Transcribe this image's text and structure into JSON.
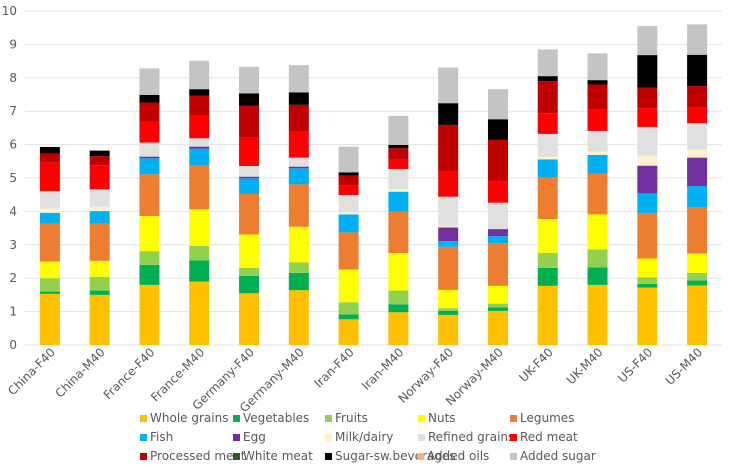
{
  "chart_data": {
    "type": "bar",
    "stacked": true,
    "title": "",
    "xlabel": "",
    "ylabel": "",
    "ylim": [
      0,
      10
    ],
    "yticks": [
      0,
      1,
      2,
      3,
      4,
      5,
      6,
      7,
      8,
      9,
      10
    ],
    "grid": true,
    "legend_position": "bottom",
    "categories": [
      "China-F40",
      "China-M40",
      "France-F40",
      "France-M40",
      "Germany-F40",
      "Germany-M40",
      "Iran-F40",
      "Iran-M40",
      "Norway-F40",
      "Norway-M40",
      "UK-F40",
      "UK-M40",
      "US-F40",
      "US-M40"
    ],
    "series": [
      {
        "name": "Whole grains",
        "color": "#FFC000",
        "values": [
          1.53,
          1.5,
          1.8,
          1.9,
          1.55,
          1.64,
          0.77,
          0.98,
          0.9,
          1.02,
          1.77,
          1.8,
          1.72,
          1.78
        ]
      },
      {
        "name": "Vegetables",
        "color": "#00B050",
        "values": [
          0.07,
          0.13,
          0.6,
          0.63,
          0.52,
          0.52,
          0.15,
          0.24,
          0.12,
          0.11,
          0.54,
          0.52,
          0.11,
          0.15
        ]
      },
      {
        "name": "Fruits",
        "color": "#92D050",
        "values": [
          0.4,
          0.41,
          0.41,
          0.44,
          0.24,
          0.31,
          0.36,
          0.41,
          0.08,
          0.11,
          0.45,
          0.54,
          0.2,
          0.23
        ]
      },
      {
        "name": "Nuts",
        "color": "#FFFF00",
        "values": [
          0.5,
          0.48,
          1.05,
          1.09,
          1.0,
          1.07,
          0.98,
          1.12,
          0.55,
          0.53,
          1.01,
          1.05,
          0.56,
          0.58
        ]
      },
      {
        "name": "Legumes",
        "color": "#ED7D31",
        "values": [
          1.14,
          1.11,
          1.25,
          1.31,
          1.21,
          1.27,
          1.11,
          1.24,
          1.29,
          1.28,
          1.24,
          1.22,
          1.36,
          1.39
        ]
      },
      {
        "name": "Fish",
        "color": "#00B0F0",
        "values": [
          0.32,
          0.38,
          0.48,
          0.51,
          0.47,
          0.48,
          0.54,
          0.6,
          0.17,
          0.21,
          0.55,
          0.56,
          0.59,
          0.63
        ]
      },
      {
        "name": "Egg",
        "color": "#7030A0",
        "values": [
          0.0,
          0.0,
          0.05,
          0.06,
          0.05,
          0.05,
          0.0,
          0.0,
          0.41,
          0.21,
          0.0,
          0.0,
          0.83,
          0.85
        ]
      },
      {
        "name": "Milk/dairy",
        "color": "#FFF2CC",
        "values": [
          0.12,
          0.13,
          0.0,
          0.0,
          0.0,
          0.0,
          0.06,
          0.08,
          0.05,
          0.0,
          0.08,
          0.1,
          0.3,
          0.24
        ]
      },
      {
        "name": "Refined grains",
        "color": "#E0E0E0",
        "values": [
          0.53,
          0.52,
          0.42,
          0.25,
          0.32,
          0.27,
          0.52,
          0.6,
          0.87,
          0.79,
          0.68,
          0.62,
          0.86,
          0.79
        ]
      },
      {
        "name": "Red meat",
        "color": "#FF0000",
        "values": [
          0.85,
          0.72,
          0.63,
          0.68,
          0.85,
          0.78,
          0.28,
          0.3,
          0.75,
          0.63,
          0.62,
          0.63,
          0.56,
          0.46
        ]
      },
      {
        "name": "Processed meat",
        "color": "#C00000",
        "values": [
          0.27,
          0.27,
          0.57,
          0.59,
          0.95,
          0.8,
          0.3,
          0.32,
          1.4,
          1.25,
          0.96,
          0.76,
          0.61,
          0.65
        ]
      },
      {
        "name": "White meat",
        "color": "#375623",
        "values": [
          0,
          0,
          0,
          0,
          0,
          0,
          0,
          0,
          0,
          0,
          0,
          0,
          0,
          0
        ]
      },
      {
        "name": "Sugar-sw.beverages",
        "color": "#000000",
        "values": [
          0.2,
          0.17,
          0.23,
          0.2,
          0.37,
          0.37,
          0.1,
          0.1,
          0.65,
          0.62,
          0.15,
          0.13,
          0.98,
          0.94
        ]
      },
      {
        "name": "Added oils",
        "color": "#F4B183",
        "values": [
          0,
          0,
          0,
          0,
          0,
          0,
          0,
          0,
          0,
          0,
          0,
          0,
          0,
          0
        ]
      },
      {
        "name": "Added sugar",
        "color": "#C4C4C4",
        "values": [
          0.0,
          0.0,
          0.79,
          0.85,
          0.8,
          0.82,
          0.77,
          0.87,
          1.07,
          0.9,
          0.8,
          0.8,
          0.87,
          0.91
        ]
      }
    ]
  },
  "legend": {
    "items": [
      {
        "label": "Whole grains",
        "color": "#FFC000"
      },
      {
        "label": "Vegetables",
        "color": "#00B050"
      },
      {
        "label": "Fruits",
        "color": "#92D050"
      },
      {
        "label": "Nuts",
        "color": "#FFFF00"
      },
      {
        "label": "Legumes",
        "color": "#ED7D31"
      },
      {
        "label": "Fish",
        "color": "#00B0F0"
      },
      {
        "label": "Egg",
        "color": "#7030A0"
      },
      {
        "label": "Milk/dairy",
        "color": "#FFF2CC"
      },
      {
        "label": "Refined grains",
        "color": "#E0E0E0"
      },
      {
        "label": "Red meat",
        "color": "#FF0000"
      },
      {
        "label": "Processed meat",
        "color": "#C00000"
      },
      {
        "label": "White meat",
        "color": "#375623"
      },
      {
        "label": "Sugar-sw.beverages",
        "color": "#000000"
      },
      {
        "label": "Added oils",
        "color": "#F4B183"
      },
      {
        "label": "Added sugar",
        "color": "#C4C4C4"
      }
    ]
  }
}
